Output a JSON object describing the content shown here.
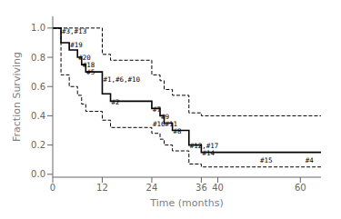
{
  "chart_data": {
    "type": "line",
    "xlabel": "Time (months)",
    "ylabel": "Fraction Surviving",
    "xlim": [
      0,
      65
    ],
    "ylim": [
      -0.02,
      1.08
    ],
    "xticks": [
      0,
      12,
      24,
      36,
      40,
      60
    ],
    "yticks": [
      {
        "value": 0,
        "label": "0.0"
      },
      0.2,
      0.4,
      0.6,
      0.8,
      {
        "value": 1,
        "label": "1.0"
      }
    ],
    "series": [
      {
        "x": [
          0,
          2,
          2,
          4,
          4,
          6,
          6,
          7,
          7,
          8,
          8,
          12,
          12,
          14,
          14,
          24,
          24,
          26,
          26,
          27,
          27,
          29,
          29,
          33,
          33,
          36,
          36,
          65
        ],
        "values": [
          1.0,
          1.0,
          0.9,
          0.9,
          0.85,
          0.85,
          0.8,
          0.8,
          0.75,
          0.75,
          0.7,
          0.7,
          0.55,
          0.55,
          0.5,
          0.5,
          0.45,
          0.45,
          0.4,
          0.4,
          0.35,
          0.35,
          0.3,
          0.3,
          0.2,
          0.2,
          0.15,
          0.15
        ],
        "color": "#000000",
        "line_style": "solid"
      },
      {
        "x": [
          0,
          2,
          2,
          6,
          6,
          8,
          8,
          12,
          12,
          14,
          14,
          24,
          24,
          26,
          26,
          27,
          27,
          29,
          29,
          33,
          33,
          36,
          36,
          65
        ],
        "values": [
          1.0,
          1.0,
          1.0,
          1.0,
          1.0,
          1.0,
          1.0,
          1.0,
          0.82,
          0.82,
          0.78,
          0.78,
          0.68,
          0.68,
          0.64,
          0.64,
          0.58,
          0.58,
          0.54,
          0.54,
          0.42,
          0.42,
          0.4,
          0.4
        ],
        "color": "#000000",
        "line_style": "dashed"
      },
      {
        "x": [
          0,
          2,
          2,
          4,
          4,
          6,
          6,
          7,
          7,
          8,
          8,
          12,
          12,
          14,
          14,
          24,
          24,
          26,
          26,
          27,
          27,
          29,
          29,
          33,
          33,
          36,
          36,
          65
        ],
        "values": [
          1.0,
          1.0,
          0.68,
          0.68,
          0.6,
          0.6,
          0.54,
          0.54,
          0.48,
          0.48,
          0.43,
          0.43,
          0.37,
          0.37,
          0.32,
          0.32,
          0.28,
          0.28,
          0.24,
          0.24,
          0.2,
          0.2,
          0.16,
          0.16,
          0.07,
          0.07,
          0.05,
          0.05
        ],
        "color": "#000000",
        "line_style": "dashed"
      }
    ],
    "annotations": [
      {
        "text": "#3,#13",
        "x": 2,
        "y": 0.995
      },
      {
        "text": "#19",
        "x": 4,
        "y": 0.905
      },
      {
        "text": "#20",
        "x": 6,
        "y": 0.815
      },
      {
        "text": "#18",
        "x": 7,
        "y": 0.765
      },
      {
        "text": "#5",
        "x": 8,
        "y": 0.715
      },
      {
        "text": "#1,#6,#10",
        "x": 12,
        "y": 0.665
      },
      {
        "text": "#2",
        "x": 14,
        "y": 0.515
      },
      {
        "text": "#7",
        "x": 24,
        "y": 0.465
      },
      {
        "text": "#9",
        "x": 26,
        "y": 0.415
      },
      {
        "text": "#11",
        "x": 27,
        "y": 0.365
      },
      {
        "text": "#8",
        "x": 29,
        "y": 0.315
      },
      {
        "text": "#16",
        "x": 24,
        "y": 0.365
      },
      {
        "text": "#12,#17",
        "x": 33,
        "y": 0.215
      },
      {
        "text": "#14",
        "x": 36,
        "y": 0.165
      },
      {
        "text": "#15",
        "x": 50,
        "y": 0.115
      },
      {
        "text": "#4",
        "x": 61,
        "y": 0.115
      }
    ]
  }
}
